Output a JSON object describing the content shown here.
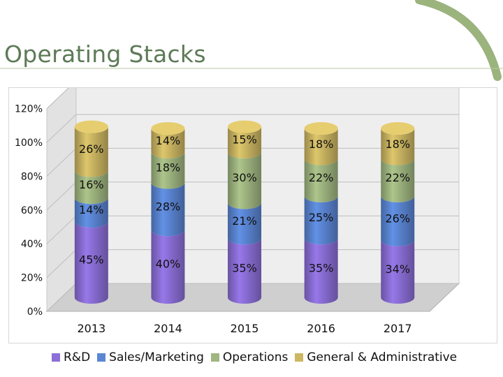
{
  "slide": {
    "title": "Operating Stacks"
  },
  "colors": {
    "accent_curve": "#9bb37d",
    "title": "#5d7a57"
  },
  "chart_data": {
    "type": "bar",
    "stacked": true,
    "style": "3d-cylinder",
    "categories": [
      "2013",
      "2014",
      "2015",
      "2016",
      "2017"
    ],
    "y_tick_labels": [
      "0%",
      "20%",
      "40%",
      "60%",
      "80%",
      "100%",
      "120%"
    ],
    "ylim": [
      0,
      120
    ],
    "legend_position": "bottom",
    "series": [
      {
        "name": "R&D",
        "color": "#8c6fd8",
        "values": [
          45,
          40,
          35,
          35,
          34
        ],
        "labels": [
          "45%",
          "40%",
          "35%",
          "35%",
          "34%"
        ]
      },
      {
        "name": "Sales/Marketing",
        "color": "#5b86d4",
        "values": [
          14,
          28,
          21,
          25,
          26
        ],
        "labels": [
          "14%",
          "28%",
          "21%",
          "25%",
          "26%"
        ]
      },
      {
        "name": "Operations",
        "color": "#a0b681",
        "values": [
          16,
          18,
          30,
          22,
          22
        ],
        "labels": [
          "16%",
          "18%",
          "30%",
          "22%",
          "22%"
        ]
      },
      {
        "name": "General & Administrative",
        "color": "#cdb763",
        "values": [
          26,
          14,
          15,
          18,
          18
        ],
        "labels": [
          "26%",
          "14%",
          "15%",
          "18%",
          "18%"
        ]
      }
    ]
  }
}
